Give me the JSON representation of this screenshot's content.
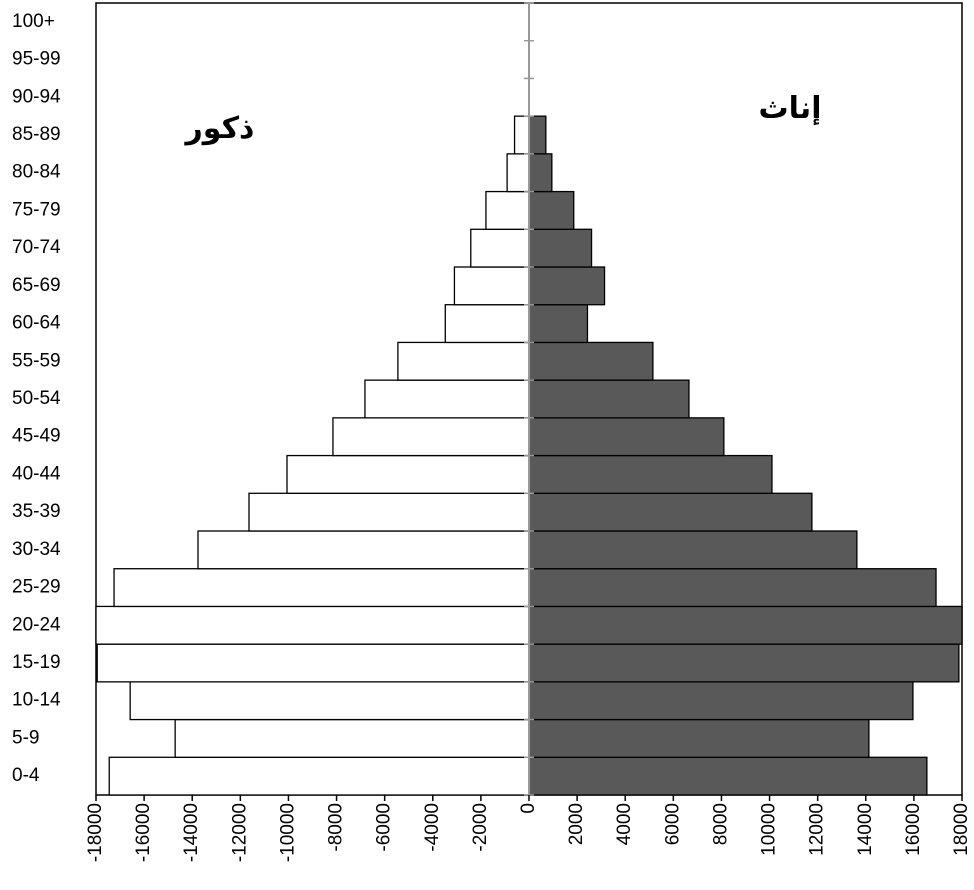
{
  "chart_data": {
    "type": "pyramid",
    "categories": [
      "0-4",
      "5-9",
      "10-14",
      "15-19",
      "20-24",
      "25-29",
      "30-34",
      "35-39",
      "40-44",
      "45-49",
      "50-54",
      "55-59",
      "60-64",
      "65-69",
      "70-74",
      "75-79",
      "80-84",
      "85-89",
      "90-94",
      "95-99",
      "100+"
    ],
    "series": [
      {
        "name": "ذكور",
        "color": "#ffffff",
        "values": [
          -17450,
          -14710,
          -16580,
          -17950,
          -18000,
          -17250,
          -13760,
          -11640,
          -10060,
          -8150,
          -6820,
          -5450,
          -3480,
          -3100,
          -2420,
          -1790,
          -910,
          -600,
          0,
          0,
          0
        ]
      },
      {
        "name": "إناث",
        "color": "#595959",
        "values": [
          16540,
          14130,
          15960,
          17870,
          18000,
          16920,
          13630,
          11760,
          10100,
          8100,
          6650,
          5150,
          2430,
          3140,
          2600,
          1860,
          950,
          700,
          0,
          0,
          0
        ]
      }
    ],
    "xlim": [
      -18000,
      18000
    ],
    "xticks": [
      -18000,
      -16000,
      -14000,
      -12000,
      -10000,
      -8000,
      -6000,
      -4000,
      -2000,
      0,
      2000,
      4000,
      6000,
      8000,
      10000,
      12000,
      14000,
      16000,
      18000
    ]
  }
}
